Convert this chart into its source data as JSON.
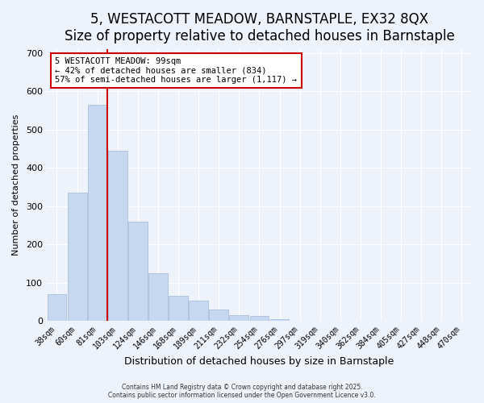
{
  "title1": "5, WESTACOTT MEADOW, BARNSTAPLE, EX32 8QX",
  "title2": "Size of property relative to detached houses in Barnstaple",
  "xlabel": "Distribution of detached houses by size in Barnstaple",
  "ylabel": "Number of detached properties",
  "bin_labels": [
    "38sqm",
    "60sqm",
    "81sqm",
    "103sqm",
    "124sqm",
    "146sqm",
    "168sqm",
    "189sqm",
    "211sqm",
    "232sqm",
    "254sqm",
    "276sqm",
    "297sqm",
    "319sqm",
    "340sqm",
    "362sqm",
    "384sqm",
    "405sqm",
    "427sqm",
    "448sqm",
    "470sqm"
  ],
  "bar_values": [
    70,
    335,
    565,
    445,
    260,
    125,
    65,
    52,
    30,
    15,
    12,
    4,
    1,
    0,
    0,
    0,
    0,
    0,
    0,
    0,
    0
  ],
  "bar_color": "#c5d8f0",
  "bar_edge_color": "#a0b8d8",
  "property_line_x": 2.5,
  "property_line_color": "#cc0000",
  "annotation_text": "5 WESTACOTT MEADOW: 99sqm\n← 42% of detached houses are smaller (834)\n57% of semi-detached houses are larger (1,117) →",
  "annotation_box_color": "#ffffff",
  "annotation_box_edge_color": "#cc0000",
  "ylim": [
    0,
    710
  ],
  "yticks": [
    0,
    100,
    200,
    300,
    400,
    500,
    600,
    700
  ],
  "background_color": "#eef2fb",
  "plot_bg_color": "#eef2fb",
  "grid_color": "#ffffff",
  "footer1": "Contains HM Land Registry data © Crown copyright and database right 2025.",
  "footer2": "Contains public sector information licensed under the Open Government Licence v3.0.",
  "title_fontsize": 12,
  "subtitle_fontsize": 10
}
